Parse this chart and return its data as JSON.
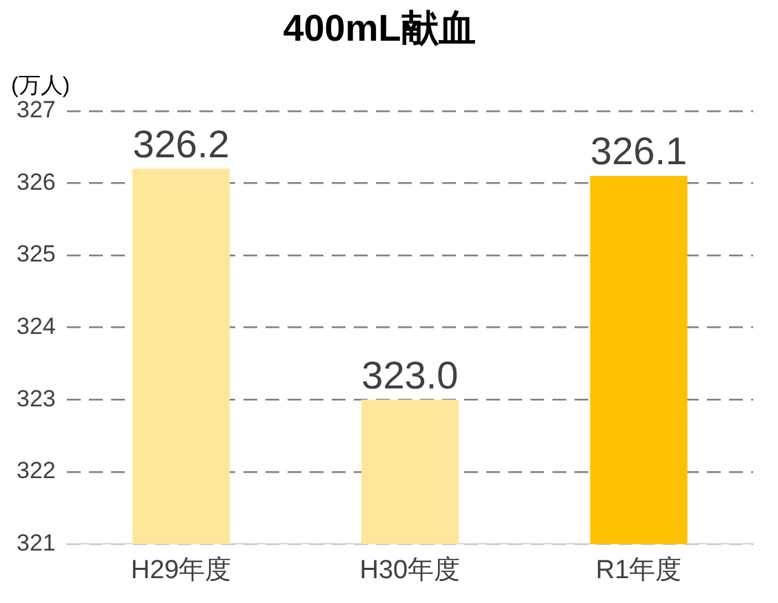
{
  "chart_data": {
    "type": "bar",
    "title": "400mL献血",
    "ylabel": "(万人)",
    "categories": [
      "H29年度",
      "H30年度",
      "R1年度"
    ],
    "values": [
      326.2,
      323.0,
      326.1
    ],
    "colors": [
      "#ffe699",
      "#ffe699",
      "#ffc000"
    ],
    "value_labels": [
      "326.2",
      "323.0",
      "326.1"
    ],
    "ylim": [
      321,
      327
    ],
    "yticks": [
      321,
      322,
      323,
      324,
      325,
      326,
      327
    ],
    "grid": "y",
    "legend": false
  }
}
